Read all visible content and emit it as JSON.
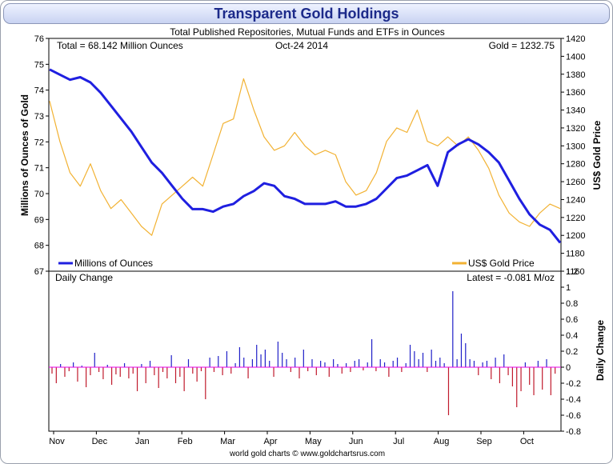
{
  "title": "Transparent Gold Holdings",
  "subtitle": "Total Published Repositories, Mutual Funds and ETFs in Ounces",
  "footer": "world gold charts © www.goldchartsrus.com",
  "colors": {
    "holdings": "#1f1fe0",
    "gold": "#f2b233",
    "bar_up": "#2020c8",
    "bar_down": "#c01a2c",
    "zero": "#e600e6",
    "left_axis_label": "#1f1fe0",
    "right_axis_label": "#e0a020"
  },
  "chart_data": [
    {
      "type": "line",
      "header_left": "Total = 68.142 Million Ounces",
      "header_center": "Oct-24  2014",
      "header_right": "Gold = 1232.75",
      "ylabel": "Millions of Ounces of Gold",
      "y2label": "US$ Gold Price",
      "ylim": [
        67,
        76
      ],
      "yticks": [
        "76",
        "75",
        "74",
        "73",
        "72",
        "71",
        "70",
        "69",
        "68",
        "67"
      ],
      "y2lim": [
        1160,
        1420
      ],
      "y2ticks": [
        "1420",
        "1400",
        "1380",
        "1360",
        "1340",
        "1320",
        "1300",
        "1280",
        "1260",
        "1240",
        "1220",
        "1200",
        "1180",
        "1160"
      ],
      "xticks": [
        "Nov",
        "Dec",
        "Jan",
        "Feb",
        "Mar",
        "Apr",
        "May",
        "Jun",
        "Jul",
        "Aug",
        "Sep",
        "Oct"
      ],
      "legend": [
        {
          "name": "Millions of Ounces",
          "color": "#1f1fe0",
          "position": "bottom-left"
        },
        {
          "name": "US$ Gold Price",
          "color": "#f2b233",
          "position": "bottom-right"
        }
      ],
      "series": [
        {
          "name": "Millions of Ounces",
          "axis": "left",
          "x": [
            "Nov",
            "Nov",
            "Nov",
            "Nov",
            "Nov",
            "Dec",
            "Dec",
            "Dec",
            "Dec",
            "Jan",
            "Jan",
            "Jan",
            "Jan",
            "Feb",
            "Feb",
            "Feb",
            "Feb",
            "Mar",
            "Mar",
            "Mar",
            "Mar",
            "Apr",
            "Apr",
            "Apr",
            "Apr",
            "May",
            "May",
            "May",
            "May",
            "Jun",
            "Jun",
            "Jun",
            "Jun",
            "Jul",
            "Jul",
            "Jul",
            "Jul",
            "Aug",
            "Aug",
            "Aug",
            "Aug",
            "Aug",
            "Sep",
            "Sep",
            "Sep",
            "Sep",
            "Oct",
            "Oct",
            "Oct",
            "Oct",
            "Oct"
          ],
          "values": [
            74.8,
            74.6,
            74.4,
            74.5,
            74.3,
            73.9,
            73.4,
            72.9,
            72.4,
            71.8,
            71.2,
            70.8,
            70.3,
            69.8,
            69.4,
            69.4,
            69.3,
            69.5,
            69.6,
            69.9,
            70.1,
            70.4,
            70.3,
            69.9,
            69.8,
            69.6,
            69.6,
            69.6,
            69.7,
            69.5,
            69.5,
            69.6,
            69.8,
            70.2,
            70.6,
            70.7,
            70.9,
            71.1,
            70.3,
            71.6,
            71.9,
            72.1,
            71.9,
            71.6,
            71.2,
            70.5,
            69.8,
            69.2,
            68.8,
            68.6,
            68.1
          ]
        },
        {
          "name": "US$ Gold Price",
          "axis": "right",
          "x": [
            "Nov",
            "Nov",
            "Nov",
            "Nov",
            "Nov",
            "Dec",
            "Dec",
            "Dec",
            "Dec",
            "Jan",
            "Jan",
            "Jan",
            "Jan",
            "Feb",
            "Feb",
            "Feb",
            "Feb",
            "Mar",
            "Mar",
            "Mar",
            "Mar",
            "Apr",
            "Apr",
            "Apr",
            "Apr",
            "May",
            "May",
            "May",
            "May",
            "Jun",
            "Jun",
            "Jun",
            "Jun",
            "Jul",
            "Jul",
            "Jul",
            "Jul",
            "Aug",
            "Aug",
            "Aug",
            "Aug",
            "Aug",
            "Sep",
            "Sep",
            "Sep",
            "Sep",
            "Oct",
            "Oct",
            "Oct",
            "Oct",
            "Oct"
          ],
          "values": [
            1350,
            1305,
            1270,
            1255,
            1280,
            1250,
            1230,
            1240,
            1225,
            1210,
            1200,
            1235,
            1245,
            1255,
            1265,
            1255,
            1290,
            1325,
            1330,
            1375,
            1340,
            1310,
            1295,
            1300,
            1315,
            1300,
            1290,
            1295,
            1290,
            1260,
            1245,
            1250,
            1270,
            1305,
            1320,
            1315,
            1340,
            1305,
            1300,
            1310,
            1300,
            1310,
            1295,
            1275,
            1245,
            1225,
            1215,
            1210,
            1225,
            1235,
            1230
          ]
        }
      ]
    },
    {
      "type": "bar",
      "title": "Daily Change",
      "header_right": "Latest = -0.081 M/oz",
      "ylabel": "Daily Change",
      "ylim": [
        -0.8,
        1.2
      ],
      "yticks": [
        "1.2",
        "1",
        "0.8",
        "0.6",
        "0.4",
        "0.2",
        "0",
        "-0.2",
        "-0.4",
        "-0.6",
        "-0.8"
      ],
      "xticks": [
        "Nov",
        "Dec",
        "Jan",
        "Feb",
        "Mar",
        "Apr",
        "May",
        "Jun",
        "Jul",
        "Aug",
        "Sep",
        "Oct"
      ],
      "values": [
        -0.08,
        -0.2,
        0.04,
        -0.12,
        -0.05,
        0.06,
        -0.18,
        0.02,
        -0.25,
        -0.1,
        0.18,
        -0.06,
        -0.15,
        0.03,
        -0.22,
        -0.09,
        -0.12,
        0.05,
        -0.14,
        -0.08,
        -0.3,
        0.04,
        -0.2,
        0.08,
        -0.1,
        -0.26,
        -0.06,
        -0.14,
        0.15,
        -0.2,
        -0.12,
        -0.3,
        0.1,
        -0.08,
        -0.18,
        -0.05,
        -0.4,
        0.12,
        -0.06,
        0.14,
        -0.1,
        0.2,
        -0.08,
        0.05,
        0.25,
        0.12,
        -0.14,
        0.1,
        0.28,
        0.16,
        0.22,
        0.08,
        -0.12,
        0.32,
        0.18,
        0.1,
        -0.06,
        0.12,
        -0.14,
        0.22,
        -0.05,
        0.1,
        -0.1,
        0.08,
        0.06,
        -0.12,
        0.1,
        0.04,
        -0.08,
        0.05,
        -0.06,
        0.08,
        0.1,
        -0.04,
        0.06,
        0.35,
        -0.05,
        0.1,
        0.06,
        -0.12,
        0.08,
        0.12,
        -0.06,
        0.05,
        0.28,
        0.2,
        0.1,
        0.18,
        -0.06,
        0.22,
        0.08,
        0.12,
        0.05,
        -0.6,
        0.95,
        0.1,
        0.42,
        0.3,
        0.1,
        0.08,
        -0.1,
        0.06,
        0.08,
        -0.15,
        0.12,
        -0.2,
        0.16,
        -0.1,
        -0.24,
        -0.5,
        -0.3,
        0.06,
        -0.22,
        -0.35,
        0.08,
        -0.28,
        0.1,
        -0.35,
        -0.081
      ]
    }
  ]
}
